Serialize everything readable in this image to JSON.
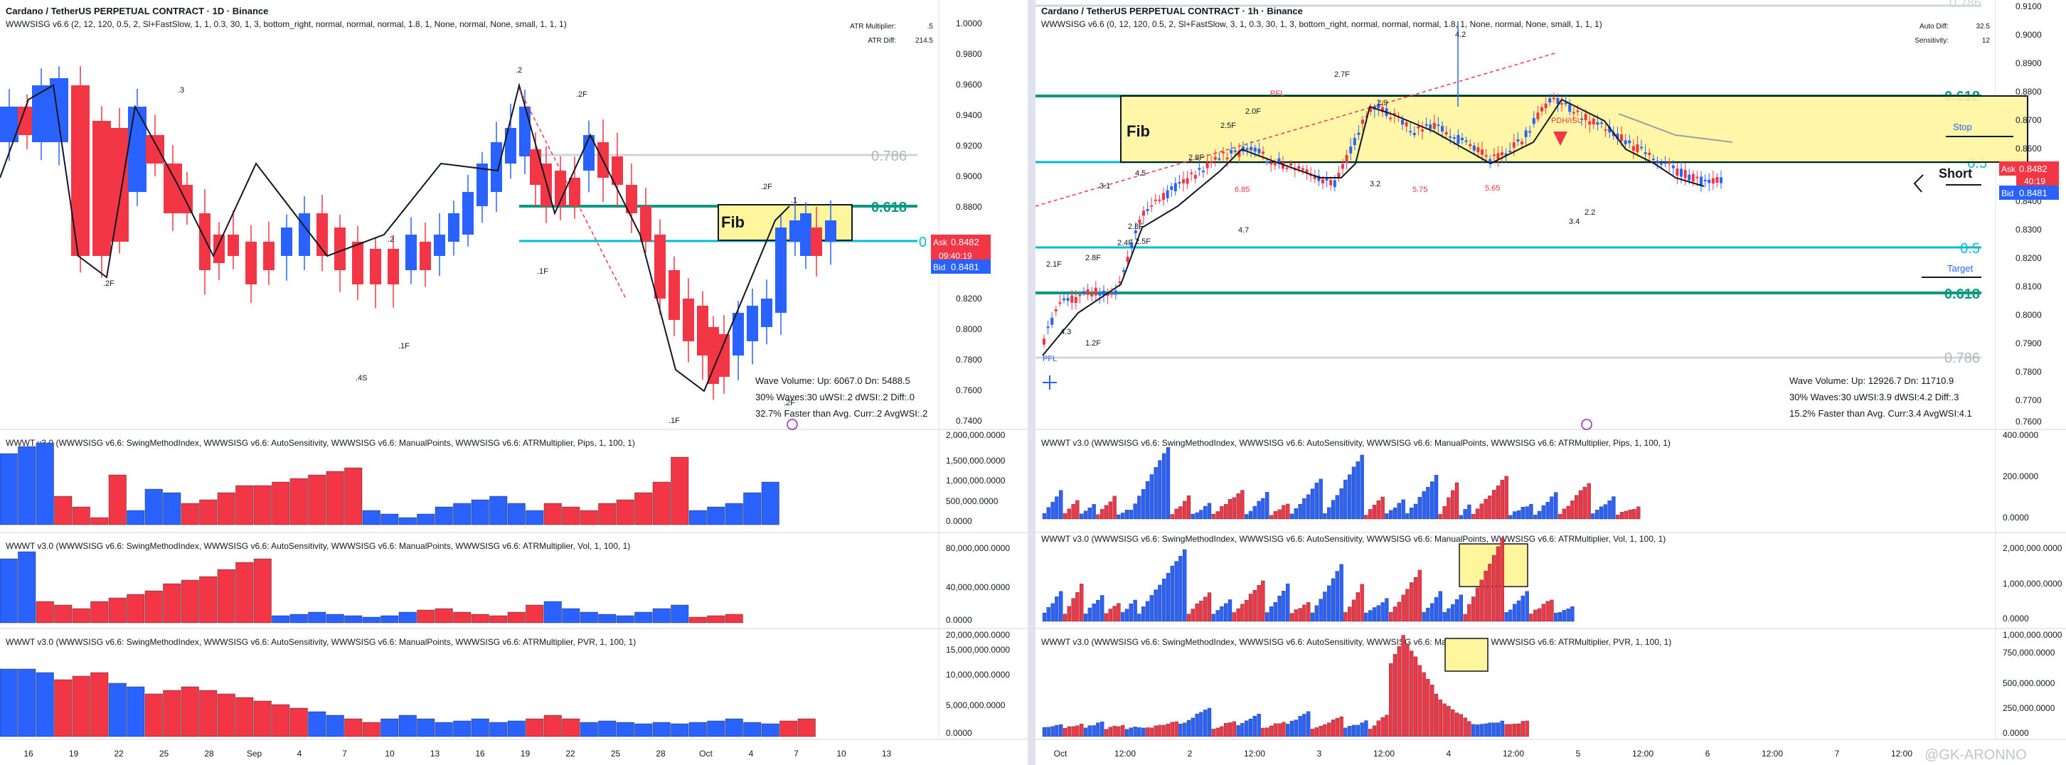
{
  "left": {
    "title": "Cardano / TetherUS PERPETUAL CONTRACT · 1D · Binance",
    "indicator": "WWWSISG v6.6 (2, 12, 120, 0.5, 2, Sl+FastSlow, 1, 1, 0.3, 30, 1, 3, bottom_right, normal, normal, normal, 1.8, 1, None, normal, None, small, 1, 1, 1)",
    "atr_multiplier_label": "ATR Multiplier:",
    "atr_multiplier_value": ".5",
    "atr_diff_label": "ATR Diff:",
    "atr_diff_value": "214.5",
    "price_axis": [
      "1.0000",
      "0.9800",
      "0.9600",
      "0.9400",
      "0.9200",
      "0.9000",
      "0.8800",
      "0.8600",
      "0.8200",
      "0.8000",
      "0.7800",
      "0.7600",
      "0.7400"
    ],
    "fib_levels": [
      {
        "label": "0.786",
        "color": "#b2b5be"
      },
      {
        "label": "0.618",
        "color": "#089981"
      },
      {
        "label": "0",
        "color": "#00bcd4"
      }
    ],
    "fib_box_label": "Fib",
    "ask_label": "Ask",
    "ask_value": "0.8482",
    "countdown": "09:40:19",
    "bid_label": "Bid",
    "bid_value": "0.8481",
    "wave_labels": [
      ".3",
      ".2",
      ".2F",
      ".2",
      ".2F",
      ".1F",
      ".1F",
      ".4S",
      ".1F",
      ".2F",
      ".1",
      ".2F"
    ],
    "wave_volume": "Wave Volume: Up: 6067.0 Dn: 5488.5",
    "waves_30": "30% Waves:30 uWSI:.2 dWSI:.2 Diff:.0",
    "faster": "32.7% Faster than Avg. Curr:.2 AvgWSI:.2",
    "sub1": "WWWT v3.0 (WWWSISG v6.6: SwingMethodIndex, WWWSISG v6.6: AutoSensitivity, WWWSISG v6.6: ManualPoints, WWWSISG v6.6: ATRMultiplier, Pips, 1, 100, 1)",
    "sub1_axis": [
      "2,000,000.0000",
      "1,500,000.0000",
      "1,000,000.0000",
      "500,000.0000",
      "0.0000"
    ],
    "sub2": "WWWT v3.0 (WWWSISG v6.6: SwingMethodIndex, WWWSISG v6.6: AutoSensitivity, WWWSISG v6.6: ManualPoints, WWWSISG v6.6: ATRMultiplier, Vol, 1, 100, 1)",
    "sub2_axis": [
      "80,000,000.0000",
      "40,000,000.0000",
      "0.0000"
    ],
    "sub3": "WWWT v3.0 (WWWSISG v6.6: SwingMethodIndex, WWWSISG v6.6: AutoSensitivity, WWWSISG v6.6: ManualPoints, WWWSISG v6.6: ATRMultiplier, PVR, 1, 100, 1)",
    "sub3_axis": [
      "20,000,000.0000",
      "15,000,000.0000",
      "10,000,000.0000",
      "5,000,000.0000",
      "0.0000"
    ],
    "time_axis": [
      "16",
      "19",
      "22",
      "25",
      "28",
      "Sep",
      "4",
      "7",
      "10",
      "13",
      "16",
      "19",
      "22",
      "25",
      "28",
      "Oct",
      "4",
      "7",
      "10",
      "13"
    ]
  },
  "right": {
    "title": "Cardano / TetherUS PERPETUAL CONTRACT · 1h · Binance",
    "indicator": "WWWSISG v6.6 (0, 12, 120, 0.5, 2, Sl+FastSlow, 3, 1, 0.3, 30, 1, 3, bottom_right, normal, normal, normal, 1.8, 1, None, normal, None, small, 1, 1, 1)",
    "auto_diff_label": "Auto Diff:",
    "auto_diff_value": "32.5",
    "sensitivity_label": "Sensitivity:",
    "sensitivity_value": "12",
    "price_axis": [
      "0.9100",
      "0.9000",
      "0.8900",
      "0.8800",
      "0.8700",
      "0.8600",
      "0.8400",
      "0.8300",
      "0.8200",
      "0.8100",
      "0.8000",
      "0.7900",
      "0.7800",
      "0.7700",
      "0.7600"
    ],
    "top_fib": "0.786",
    "fib_levels": [
      {
        "label": "0.618",
        "color": "#089981"
      },
      {
        "label": "0.5",
        "color": "#00bcd4"
      },
      {
        "label": "0.5",
        "color": "#00bcd4"
      },
      {
        "label": "0.618",
        "color": "#089981"
      },
      {
        "label": "0.786",
        "color": "#b2b5be"
      }
    ],
    "fib_box_label": "Fib",
    "stop_label": "Stop",
    "short_label": "Short",
    "target_label": "Target",
    "pdh_label": "PDH/ISU",
    "ask_label": "Ask",
    "ask_value": "0.8482",
    "countdown": "40:19",
    "bid_label": "Bid",
    "bid_value": "0.8481",
    "wave_labels": [
      "4.2",
      "2.7F",
      "2.9",
      "2.0F",
      "2.5F",
      "2.8F",
      "4.5",
      "3.1",
      "2.8F",
      "2.5F",
      "2.4F",
      "2.8F",
      "2.1F",
      "4.3",
      "1.2F",
      "4.7",
      "3.2",
      "6.85",
      "5.75",
      "5.65",
      "2.2",
      "3.4",
      "PFL",
      "PFL"
    ],
    "wave_volume": "Wave Volume: Up: 12926.7 Dn: 11710.9",
    "waves_30": "30% Waves:30 uWSI:3.9 dWSI:4.2 Diff:.3",
    "faster": "15.2% Faster than Avg. Curr:3.4 AvgWSI:4.1",
    "sub1": "WWWT v3.0 (WWWSISG v6.6: SwingMethodIndex, WWWSISG v6.6: AutoSensitivity, WWWSISG v6.6: ManualPoints, WWWSISG v6.6: ATRMultiplier, Pips, 1, 100, 1)",
    "sub1_axis": [
      "400.0000",
      "200.0000",
      "0.0000"
    ],
    "sub2": "WWWT v3.0 (WWWSISG v6.6: SwingMethodIndex, WWWSISG v6.6: AutoSensitivity, WWWSISG v6.6: ManualPoints, WWWSISG v6.6: ATRMultiplier, Vol, 1, 100, 1)",
    "sub2_axis": [
      "2,000,000.0000",
      "1,000,000.0000",
      "0.0000"
    ],
    "sub3": "WWWT v3.0 (WWWSISG v6.6: SwingMethodIndex, WWWSISG v6.6: AutoSensitivity, WWWSISG v6.6: ManualPoints, WWWSISG v6.6: ATRMultiplier, PVR, 1, 100, 1)",
    "sub3_axis": [
      "1,000,000.0000",
      "750,000.0000",
      "500,000.0000",
      "250,000.0000",
      "0.0000"
    ],
    "time_axis": [
      "Oct",
      "12:00",
      "2",
      "12:00",
      "3",
      "12:00",
      "4",
      "12:00",
      "5",
      "12:00",
      "6",
      "12:00",
      "7",
      "12:00"
    ],
    "watermark": "@GK-ARONNO"
  },
  "colors": {
    "up": "#2962ff",
    "down": "#f23645",
    "fib_fill": "#fff59d"
  }
}
